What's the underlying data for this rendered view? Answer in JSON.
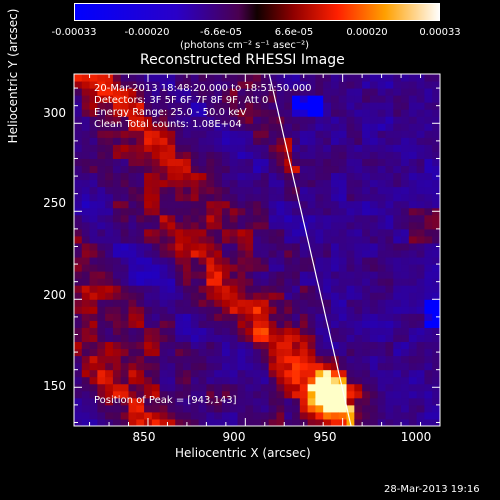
{
  "colorbar": {
    "ticks": [
      "-0.00033",
      "-0.00020",
      "-6.6e-05",
      "6.6e-05",
      "0.00020",
      "0.00033"
    ],
    "unit_label": "(photons cm⁻² s⁻¹ asec⁻²)"
  },
  "chart_data": {
    "type": "heatmap",
    "title": "Reconstructed RHESSI Image",
    "xlabel": "Heliocentric X (arcsec)",
    "ylabel": "Heliocentric Y (arcsec)",
    "xlim": [
      812,
      1000
    ],
    "ylim": [
      128,
      328
    ],
    "x_ticks": [
      "850",
      "900",
      "950",
      "1000"
    ],
    "y_ticks": [
      "150",
      "200",
      "250",
      "300"
    ],
    "colorscale_range": [
      -0.00033,
      0.00033
    ],
    "peak_position": [
      943,
      143
    ],
    "info_lines": [
      "20-Mar-2013 18:48:20.000 to 18:51:50.000",
      "Detectors: 3F 5F 6F 7F 8F 9F, Att 0",
      "Energy Range: 25.0 - 50.0 keV",
      "Clean     Total counts: 1.08E+04"
    ],
    "peak_label": "Position of Peak = [943,143]",
    "limb_color": "#ffffff"
  },
  "footer": {
    "date": "28-Mar-2013 19:16"
  }
}
